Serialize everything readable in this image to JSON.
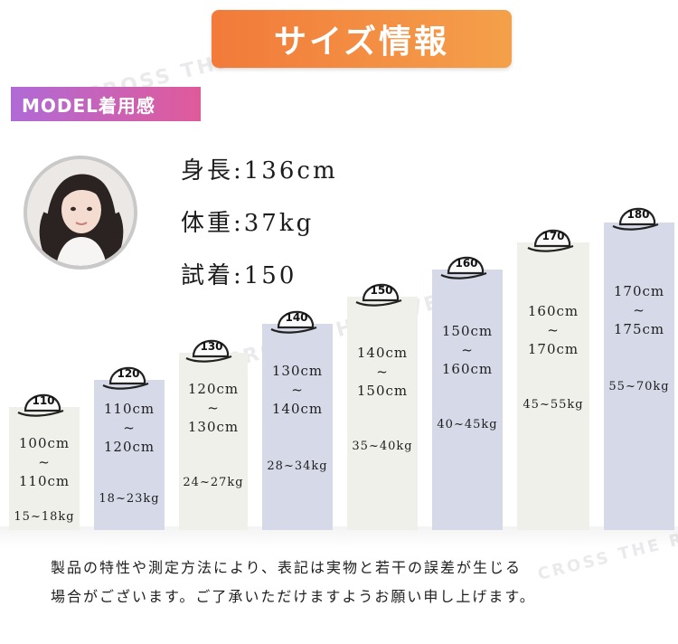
{
  "header": {
    "title": "サイズ情報"
  },
  "watermark": {
    "text": "CROSS THE RIVER"
  },
  "model_section": {
    "label": "MODEL着用感"
  },
  "model_stats": [
    {
      "text": "身長:136cm"
    },
    {
      "text": "体重:37kg"
    },
    {
      "text": "試着:150"
    }
  ],
  "sizes": [
    {
      "size": "110",
      "height_range": [
        "100cm",
        "~",
        "110cm"
      ],
      "weight": "15~18kg",
      "style": "light"
    },
    {
      "size": "120",
      "height_range": [
        "110cm",
        "~",
        "120cm"
      ],
      "weight": "18~23kg",
      "style": "blue"
    },
    {
      "size": "130",
      "height_range": [
        "120cm",
        "~",
        "130cm"
      ],
      "weight": "24~27kg",
      "style": "light"
    },
    {
      "size": "140",
      "height_range": [
        "130cm",
        "~",
        "140cm"
      ],
      "weight": "28~34kg",
      "style": "blue"
    },
    {
      "size": "150",
      "height_range": [
        "140cm",
        "~",
        "150cm"
      ],
      "weight": "35~40kg",
      "style": "light"
    },
    {
      "size": "160",
      "height_range": [
        "150cm",
        "~",
        "160cm"
      ],
      "weight": "40~45kg",
      "style": "blue"
    },
    {
      "size": "170",
      "height_range": [
        "160cm",
        "~",
        "170cm"
      ],
      "weight": "45~55kg",
      "style": "light"
    },
    {
      "size": "180",
      "height_range": [
        "170cm",
        "~",
        "175cm"
      ],
      "weight": "55~70kg",
      "style": "blue"
    }
  ],
  "notes": {
    "line1": "製品の特性や測定方法により、表記は実物と若干の誤差が生じる",
    "line2": "場合がございます。ご了承いただけますようお願い申し上げます。"
  },
  "colors": {
    "banner": "#f27a3a",
    "model_tag": "#c462bd",
    "column_light": "#f0f0ea",
    "column_blue": "#d6dae8"
  }
}
